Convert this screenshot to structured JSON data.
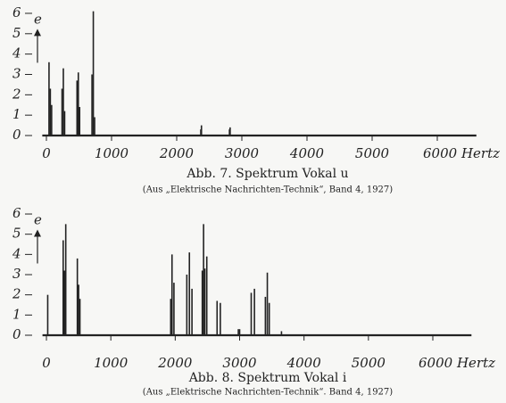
{
  "chart_data": [
    {
      "type": "spectrum",
      "title": "Abb. 7. Spektrum Vokal u",
      "subtitle": "(Aus „Elektrische Nachrichten-Technik“, Band 4, 1927)",
      "y_label": "e",
      "x": [
        40,
        60,
        80,
        240,
        260,
        280,
        470,
        490,
        510,
        700,
        720,
        740,
        2370,
        2380,
        2810,
        2820
      ],
      "values": [
        3.6,
        2.3,
        1.5,
        2.3,
        3.3,
        1.2,
        2.7,
        3.1,
        1.4,
        3.0,
        6.1,
        0.9,
        0.3,
        0.5,
        0.3,
        0.4
      ],
      "color": "#222",
      "xlim": [
        -200,
        6600
      ],
      "ylim": [
        0,
        6.2
      ],
      "xticks": [
        0,
        1000,
        2000,
        3000,
        4000,
        5000,
        {
          "value": 6000,
          "label": "6000 Hertz"
        }
      ],
      "yticks": [
        0,
        1,
        2,
        3,
        4,
        5,
        6
      ]
    },
    {
      "type": "spectrum",
      "title": "Abb. 8. Spektrum Vokal i",
      "subtitle": "(Aus „Elektrische Nachrichten-Technik“. Band 4, 1927)",
      "y_label": "e",
      "x": [
        20,
        260,
        280,
        300,
        480,
        500,
        520,
        1930,
        1950,
        1980,
        2180,
        2220,
        2260,
        2420,
        2440,
        2460,
        2490,
        2650,
        2700,
        2980,
        3000,
        3180,
        3230,
        3400,
        3430,
        3460,
        3650
      ],
      "values": [
        2.0,
        4.7,
        3.2,
        5.5,
        3.8,
        2.5,
        1.8,
        1.8,
        4.0,
        2.6,
        3.0,
        4.1,
        2.3,
        3.2,
        5.5,
        3.3,
        3.9,
        1.7,
        1.6,
        0.3,
        0.3,
        2.1,
        2.3,
        1.9,
        3.1,
        1.6,
        0.2
      ],
      "color": "#222",
      "xlim": [
        -200,
        6600
      ],
      "ylim": [
        0,
        6.2
      ],
      "xticks": [
        0,
        1000,
        2000,
        3000,
        4000,
        5000,
        {
          "value": 6000,
          "label": "6000 Hertz"
        }
      ],
      "yticks": [
        0,
        1,
        2,
        3,
        4,
        5,
        6
      ]
    }
  ]
}
